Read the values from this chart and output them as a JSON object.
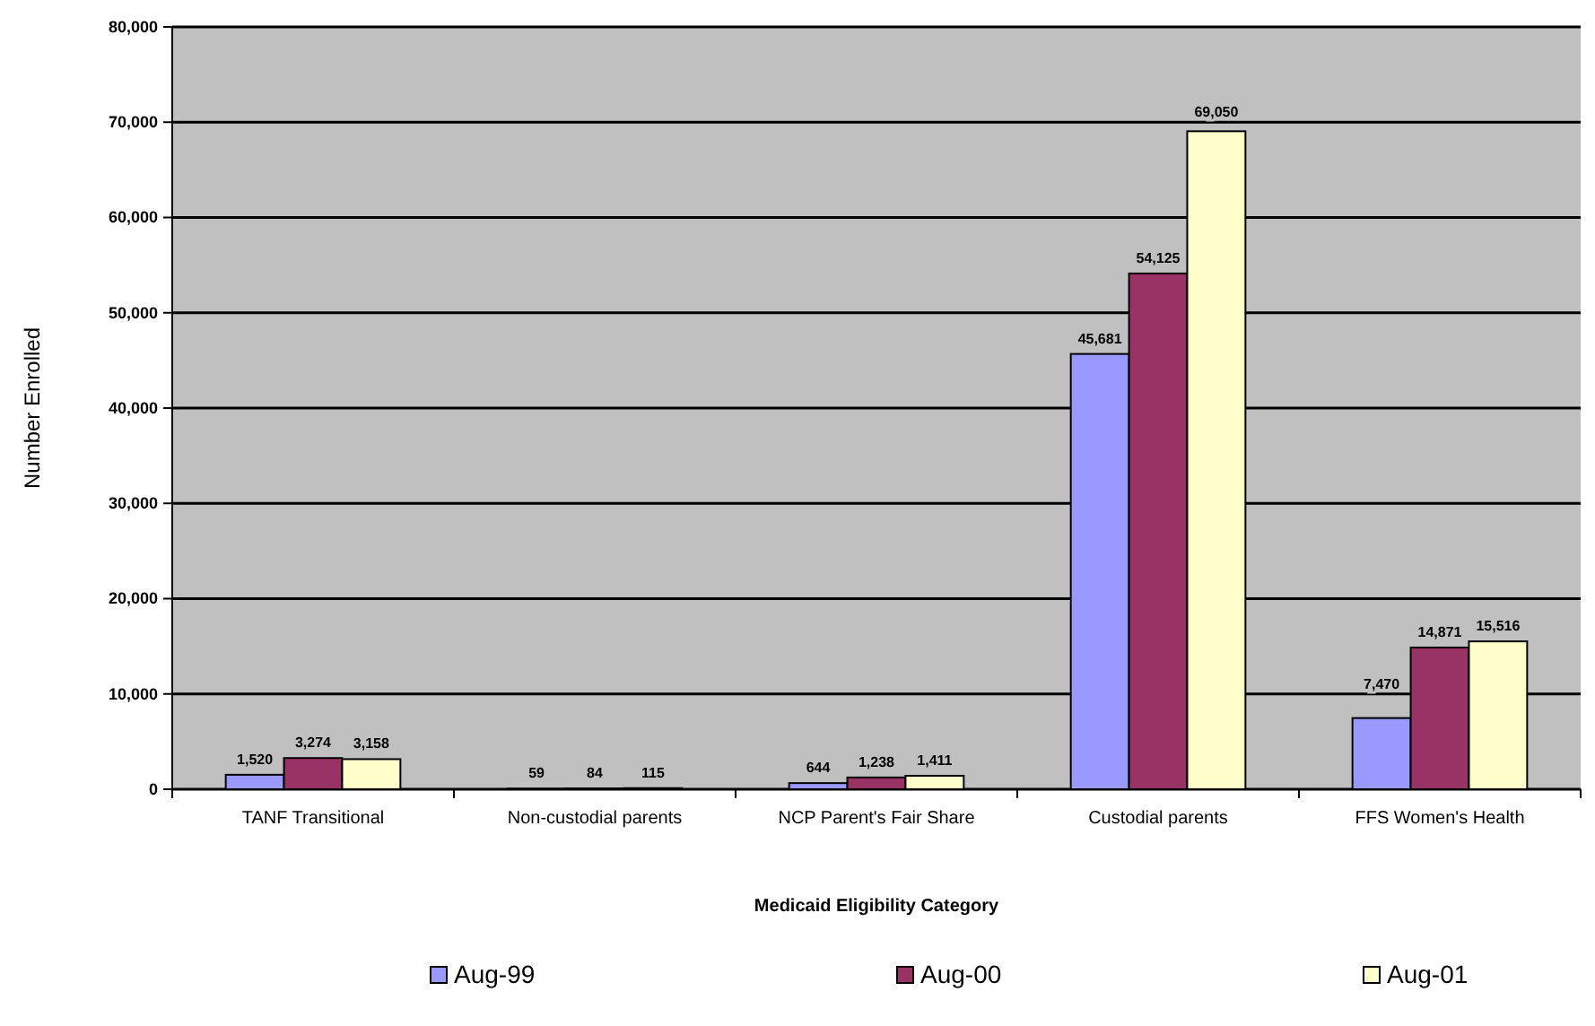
{
  "chart_data": {
    "type": "bar",
    "xlabel": "Medicaid Eligibility Category",
    "ylabel": "Number Enrolled",
    "categories": [
      "TANF Transitional",
      "Non-custodial parents",
      "NCP Parent's Fair Share",
      "Custodial parents",
      "FFS Women's Health"
    ],
    "series": [
      {
        "name": "Aug-99",
        "color": "#9999ff",
        "values": [
          1520,
          59,
          644,
          45681,
          7470
        ],
        "value_labels": [
          "1,520",
          "59",
          "644",
          "45,681",
          "7,470"
        ]
      },
      {
        "name": "Aug-00",
        "color": "#993366",
        "values": [
          3274,
          84,
          1238,
          54125,
          14871
        ],
        "value_labels": [
          "3,274",
          "84",
          "1,238",
          "54,125",
          "14,871"
        ]
      },
      {
        "name": "Aug-01",
        "color": "#ffffcc",
        "values": [
          3158,
          115,
          1411,
          69050,
          15516
        ],
        "value_labels": [
          "3,158",
          "115",
          "1,411",
          "69,050",
          "15,516"
        ]
      }
    ],
    "ylim": [
      0,
      80000
    ],
    "yticks": [
      {
        "value": 0,
        "label": "0"
      },
      {
        "value": 10000,
        "label": "10,000"
      },
      {
        "value": 20000,
        "label": "20,000"
      },
      {
        "value": 30000,
        "label": "30,000"
      },
      {
        "value": 40000,
        "label": "40,000"
      },
      {
        "value": 50000,
        "label": "50,000"
      },
      {
        "value": 60000,
        "label": "60,000"
      },
      {
        "value": 70000,
        "label": "70,000"
      },
      {
        "value": 80000,
        "label": "80,000"
      }
    ],
    "grid": "y",
    "legend": "bottom"
  }
}
